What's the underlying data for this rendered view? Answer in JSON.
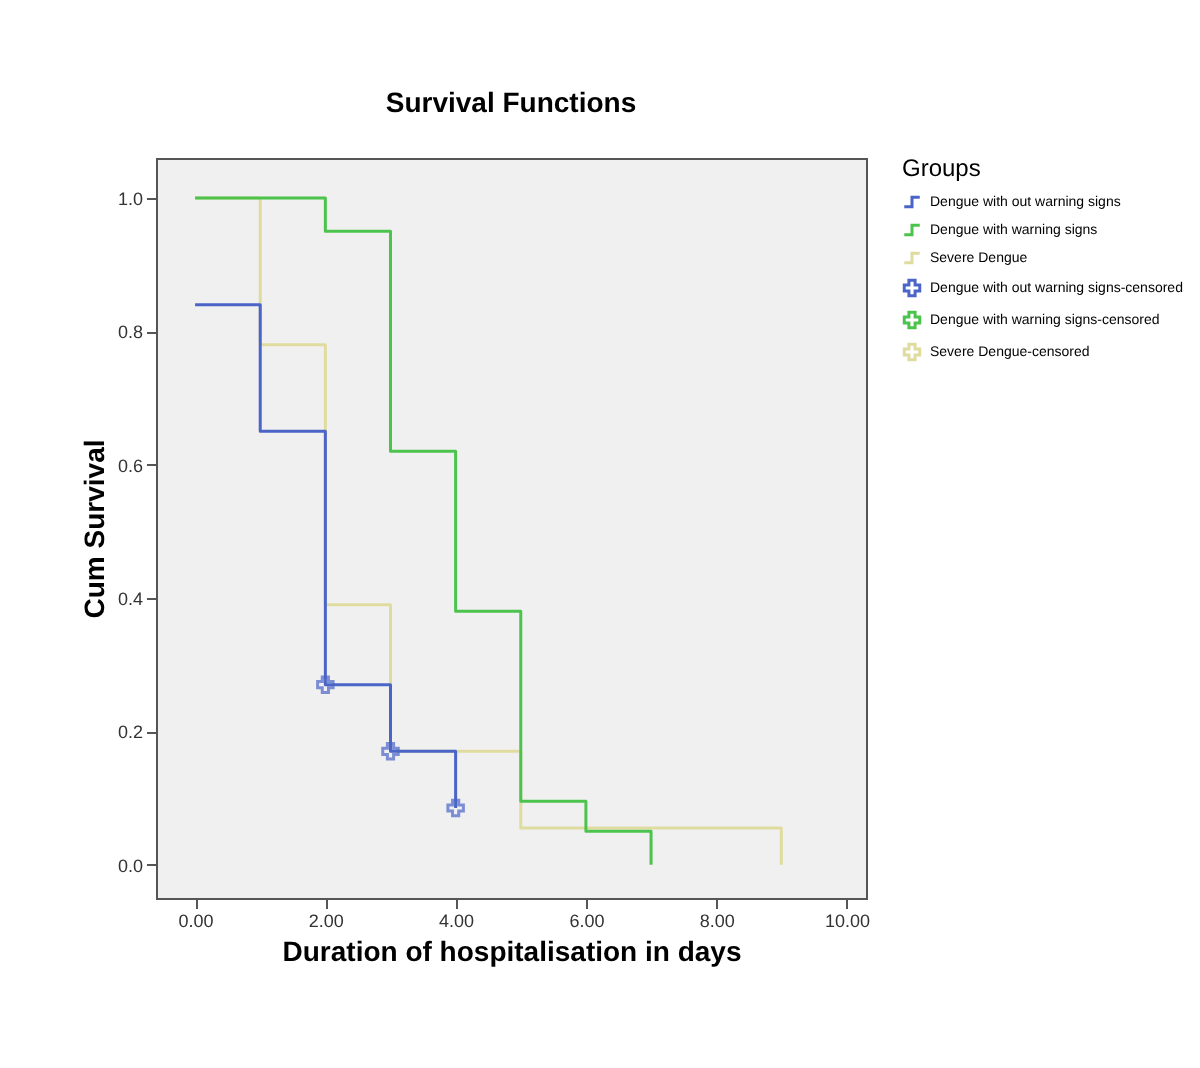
{
  "chart_data": {
    "type": "step",
    "title": "Survival Functions",
    "xlabel": "Duration of hospitalisation in days",
    "ylabel": "Cum Survival",
    "legend_title": "Groups",
    "legend": "right",
    "xlim": [
      -0.6,
      10.3
    ],
    "ylim": [
      -0.05,
      1.06
    ],
    "xticks": [
      {
        "value": 0,
        "label": "0.00"
      },
      {
        "value": 2,
        "label": "2.00"
      },
      {
        "value": 4,
        "label": "4.00"
      },
      {
        "value": 6,
        "label": "6.00"
      },
      {
        "value": 8,
        "label": "8.00"
      },
      {
        "value": 10,
        "label": "10.00"
      }
    ],
    "yticks": [
      {
        "value": 0,
        "label": "0.0"
      },
      {
        "value": 0.2,
        "label": "0.2"
      },
      {
        "value": 0.4,
        "label": "0.4"
      },
      {
        "value": 0.6,
        "label": "0.6"
      },
      {
        "value": 0.8,
        "label": "0.8"
      },
      {
        "value": 1,
        "label": "1.0"
      }
    ],
    "grid": false,
    "series": [
      {
        "name": "Dengue with out warning signs",
        "type": "step",
        "color": "#4a64c8",
        "x": [
          0,
          1,
          2,
          3,
          4
        ],
        "values": [
          0.84,
          0.65,
          0.27,
          0.17,
          0.085
        ]
      },
      {
        "name": "Dengue with warning signs",
        "type": "step",
        "color": "#4cc34c",
        "x": [
          0,
          2,
          3,
          4,
          5,
          6,
          7
        ],
        "values": [
          1,
          0.95,
          0.62,
          0.38,
          0.095,
          0.05,
          0
        ]
      },
      {
        "name": "Severe Dengue",
        "type": "step",
        "color": "#e0dca0",
        "x": [
          0,
          1,
          2,
          3,
          5,
          9
        ],
        "values": [
          1,
          0.78,
          0.39,
          0.17,
          0.055,
          0
        ]
      },
      {
        "name": "Dengue with out warning signs-censored",
        "type": "scatter",
        "marker": "cross",
        "color": "#4a64c8",
        "x": [
          2,
          3,
          4
        ],
        "values": [
          0.27,
          0.17,
          0.085
        ]
      },
      {
        "name": "Dengue with warning signs-censored",
        "type": "scatter",
        "marker": "cross",
        "color": "#4cc34c"
      },
      {
        "name": "Severe Dengue-censored",
        "type": "scatter",
        "marker": "cross",
        "color": "#e0dca0"
      }
    ]
  }
}
